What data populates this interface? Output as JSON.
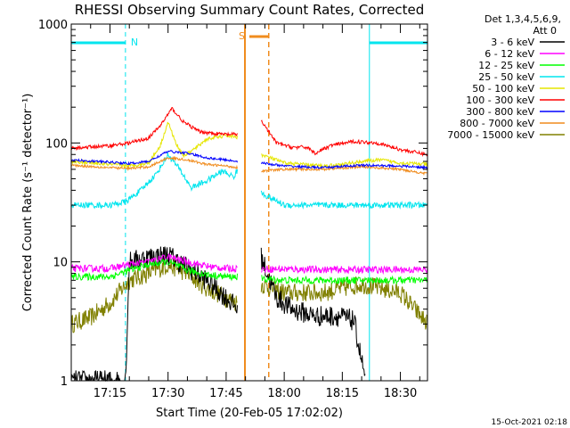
{
  "chart_data": {
    "type": "line",
    "title": "RHESSI Observing Summary Count Rates, Corrected",
    "xlabel": "Start Time (20-Feb-05 17:02:02)",
    "ylabel": "Corrected Count Rate (s⁻¹ detector⁻¹)",
    "y_scale": "log",
    "ylim": [
      1,
      1000
    ],
    "xlim": [
      "17:05",
      "18:37"
    ],
    "y_ticks": [
      {
        "value": 1,
        "label": "1"
      },
      {
        "value": 10,
        "label": "10"
      },
      {
        "value": 100,
        "label": "100"
      },
      {
        "value": 1000,
        "label": "1000"
      }
    ],
    "x_ticks": [
      {
        "value": "17:15",
        "label": "17:15"
      },
      {
        "value": "17:30",
        "label": "17:30"
      },
      {
        "value": "17:45",
        "label": "17:45"
      },
      {
        "value": "18:00",
        "label": "18:00"
      },
      {
        "value": "18:15",
        "label": "18:15"
      },
      {
        "value": "18:30",
        "label": "18:30"
      }
    ],
    "legend": {
      "header1": "Det 1,3,4,5,6,9,",
      "header2": "Att 0",
      "placement": "right"
    },
    "night_segments": [
      {
        "label": "N",
        "start": "17:05",
        "end": "17:19",
        "color": "#00e5ee"
      },
      {
        "label": "",
        "start": "18:22",
        "end": "18:37",
        "color": "#00e5ee"
      }
    ],
    "saa_segment": {
      "label": "S",
      "start": "17:51",
      "end": "17:56",
      "color": "#f08c1e"
    },
    "data_gap": [
      "17:48",
      "17:54"
    ],
    "series": [
      {
        "name": "3 - 6 keV",
        "color": "#000000",
        "x": [
          "17:05",
          "17:19",
          "17:20",
          "17:25",
          "17:30",
          "17:35",
          "17:40",
          "17:45",
          "17:48",
          "17:54",
          "17:58",
          "18:02",
          "18:08",
          "18:14",
          "18:18",
          "18:21"
        ],
        "y": [
          1,
          1,
          10,
          11,
          11.5,
          9,
          7,
          5,
          4,
          11,
          5,
          4,
          3.5,
          3.5,
          3.2,
          1
        ]
      },
      {
        "name": "6 - 12 keV",
        "color": "#ff00ff",
        "x": [
          "17:05",
          "17:15",
          "17:20",
          "17:25",
          "17:30",
          "17:35",
          "17:40",
          "17:45",
          "17:48",
          "17:54",
          "18:00",
          "18:10",
          "18:20",
          "18:30",
          "18:37"
        ],
        "y": [
          8.8,
          8.8,
          9.5,
          10,
          11,
          10,
          9.2,
          8.8,
          8.8,
          8.7,
          8.7,
          8.6,
          8.6,
          8.6,
          8.6
        ]
      },
      {
        "name": "12 - 25 keV",
        "color": "#00ff00",
        "x": [
          "17:05",
          "17:15",
          "17:20",
          "17:25",
          "17:30",
          "17:35",
          "17:40",
          "17:45",
          "17:48",
          "17:54",
          "18:00",
          "18:10",
          "18:20",
          "18:30",
          "18:37"
        ],
        "y": [
          7.5,
          7.5,
          8.5,
          9.5,
          10,
          8.5,
          7.8,
          7.5,
          7.5,
          7.2,
          7,
          7,
          7,
          7,
          7
        ]
      },
      {
        "name": "25 - 50 keV",
        "color": "#00e5ee",
        "x": [
          "17:05",
          "17:15",
          "17:19",
          "17:23",
          "17:27",
          "17:30",
          "17:33",
          "17:36",
          "17:40",
          "17:44",
          "17:47",
          "17:48",
          "17:54",
          "18:00",
          "18:10",
          "18:20",
          "18:30",
          "18:37"
        ],
        "y": [
          30,
          30,
          32,
          40,
          55,
          80,
          60,
          42,
          48,
          58,
          52,
          60,
          38,
          30,
          30,
          30,
          30,
          30
        ]
      },
      {
        "name": "50 - 100 keV",
        "color": "#e6e600",
        "x": [
          "17:05",
          "17:15",
          "17:20",
          "17:25",
          "17:28",
          "17:30",
          "17:32",
          "17:34",
          "17:36",
          "17:40",
          "17:45",
          "17:48",
          "17:54",
          "18:00",
          "18:10",
          "18:15",
          "18:20",
          "18:25",
          "18:30",
          "18:37"
        ],
        "y": [
          70,
          66,
          64,
          68,
          95,
          150,
          100,
          78,
          85,
          108,
          115,
          112,
          80,
          68,
          64,
          66,
          70,
          72,
          68,
          66
        ]
      },
      {
        "name": "100 - 300 keV",
        "color": "#ff0000",
        "x": [
          "17:05",
          "17:15",
          "17:20",
          "17:25",
          "17:28",
          "17:31",
          "17:34",
          "17:38",
          "17:42",
          "17:45",
          "17:48",
          "17:54",
          "17:58",
          "18:02",
          "18:06",
          "18:08",
          "18:12",
          "18:18",
          "18:24",
          "18:30",
          "18:37"
        ],
        "y": [
          90,
          95,
          100,
          110,
          140,
          195,
          150,
          125,
          120,
          118,
          118,
          155,
          100,
          92,
          92,
          82,
          95,
          103,
          100,
          88,
          80
        ]
      },
      {
        "name": "300 - 800 keV",
        "color": "#0000ff",
        "x": [
          "17:05",
          "17:15",
          "17:20",
          "17:25",
          "17:30",
          "17:35",
          "17:40",
          "17:45",
          "17:48",
          "17:54",
          "18:00",
          "18:10",
          "18:20",
          "18:30",
          "18:37"
        ],
        "y": [
          72,
          69,
          67,
          70,
          85,
          82,
          75,
          72,
          70,
          68,
          64,
          62,
          65,
          64,
          62
        ]
      },
      {
        "name": "800 - 7000 keV",
        "color": "#f08c1e",
        "x": [
          "17:05",
          "17:15",
          "17:20",
          "17:25",
          "17:30",
          "17:35",
          "17:40",
          "17:45",
          "17:48",
          "17:54",
          "18:00",
          "18:10",
          "18:20",
          "18:30",
          "18:37"
        ],
        "y": [
          65,
          62,
          61,
          63,
          75,
          72,
          66,
          64,
          62,
          58,
          60,
          60,
          63,
          60,
          55
        ]
      },
      {
        "name": "7000 - 15000 keV",
        "color": "#808000",
        "x": [
          "17:05",
          "17:10",
          "17:15",
          "17:20",
          "17:25",
          "17:30",
          "17:35",
          "17:40",
          "17:45",
          "17:48",
          "17:54",
          "18:00",
          "18:10",
          "18:20",
          "18:30",
          "18:37"
        ],
        "y": [
          3,
          3.4,
          4.5,
          7,
          8,
          9.5,
          8,
          6,
          5,
          4.5,
          6.5,
          5.5,
          5.5,
          6.5,
          5.5,
          3
        ]
      }
    ]
  },
  "footer": {
    "timestamp": "15-Oct-2021 02:18"
  }
}
